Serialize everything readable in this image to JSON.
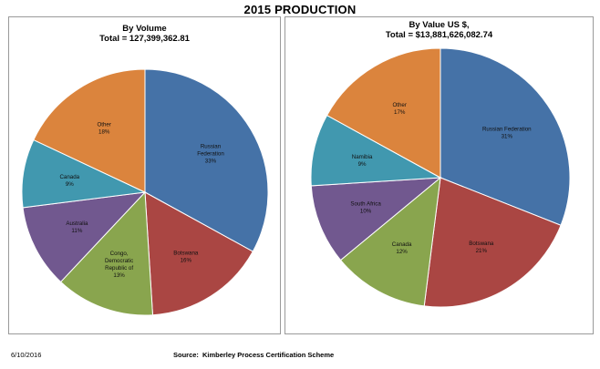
{
  "page_title": "2015 PRODUCTION",
  "footer": {
    "date": "6/10/2016",
    "source_label": "Source:",
    "source_value": "Kimberley Process Certification Scheme"
  },
  "chart_data": [
    {
      "type": "pie",
      "title": "By Volume",
      "subtitle": "Total  = 127,399,362.81",
      "slices": [
        {
          "label": "Russian Federation",
          "value": 33,
          "pct_label": "33%",
          "color": "#4572A7"
        },
        {
          "label": "Botswana",
          "value": 16,
          "pct_label": "16%",
          "color": "#AA4643"
        },
        {
          "label": "Congo, Democratic Republic of",
          "value": 13,
          "pct_label": "13%",
          "color": "#89A54E"
        },
        {
          "label": "Australia",
          "value": 11,
          "pct_label": "11%",
          "color": "#71588F"
        },
        {
          "label": "Canada",
          "value": 9,
          "pct_label": "9%",
          "color": "#4198AF"
        },
        {
          "label": "Other",
          "value": 18,
          "pct_label": "18%",
          "color": "#DB843D"
        }
      ]
    },
    {
      "type": "pie",
      "title": "By Value US $,",
      "subtitle": "Total  = $13,881,626,082.74",
      "slices": [
        {
          "label": "Russian Federation",
          "value": 31,
          "pct_label": "31%",
          "color": "#4572A7"
        },
        {
          "label": "Botswana",
          "value": 21,
          "pct_label": "21%",
          "color": "#AA4643"
        },
        {
          "label": "Canada",
          "value": 12,
          "pct_label": "12%",
          "color": "#89A54E"
        },
        {
          "label": "South Africa",
          "value": 10,
          "pct_label": "10%",
          "color": "#71588F"
        },
        {
          "label": "Namibia",
          "value": 9,
          "pct_label": "9%",
          "color": "#4198AF"
        },
        {
          "label": "Other",
          "value": 17,
          "pct_label": "17%",
          "color": "#DB843D"
        }
      ]
    }
  ]
}
